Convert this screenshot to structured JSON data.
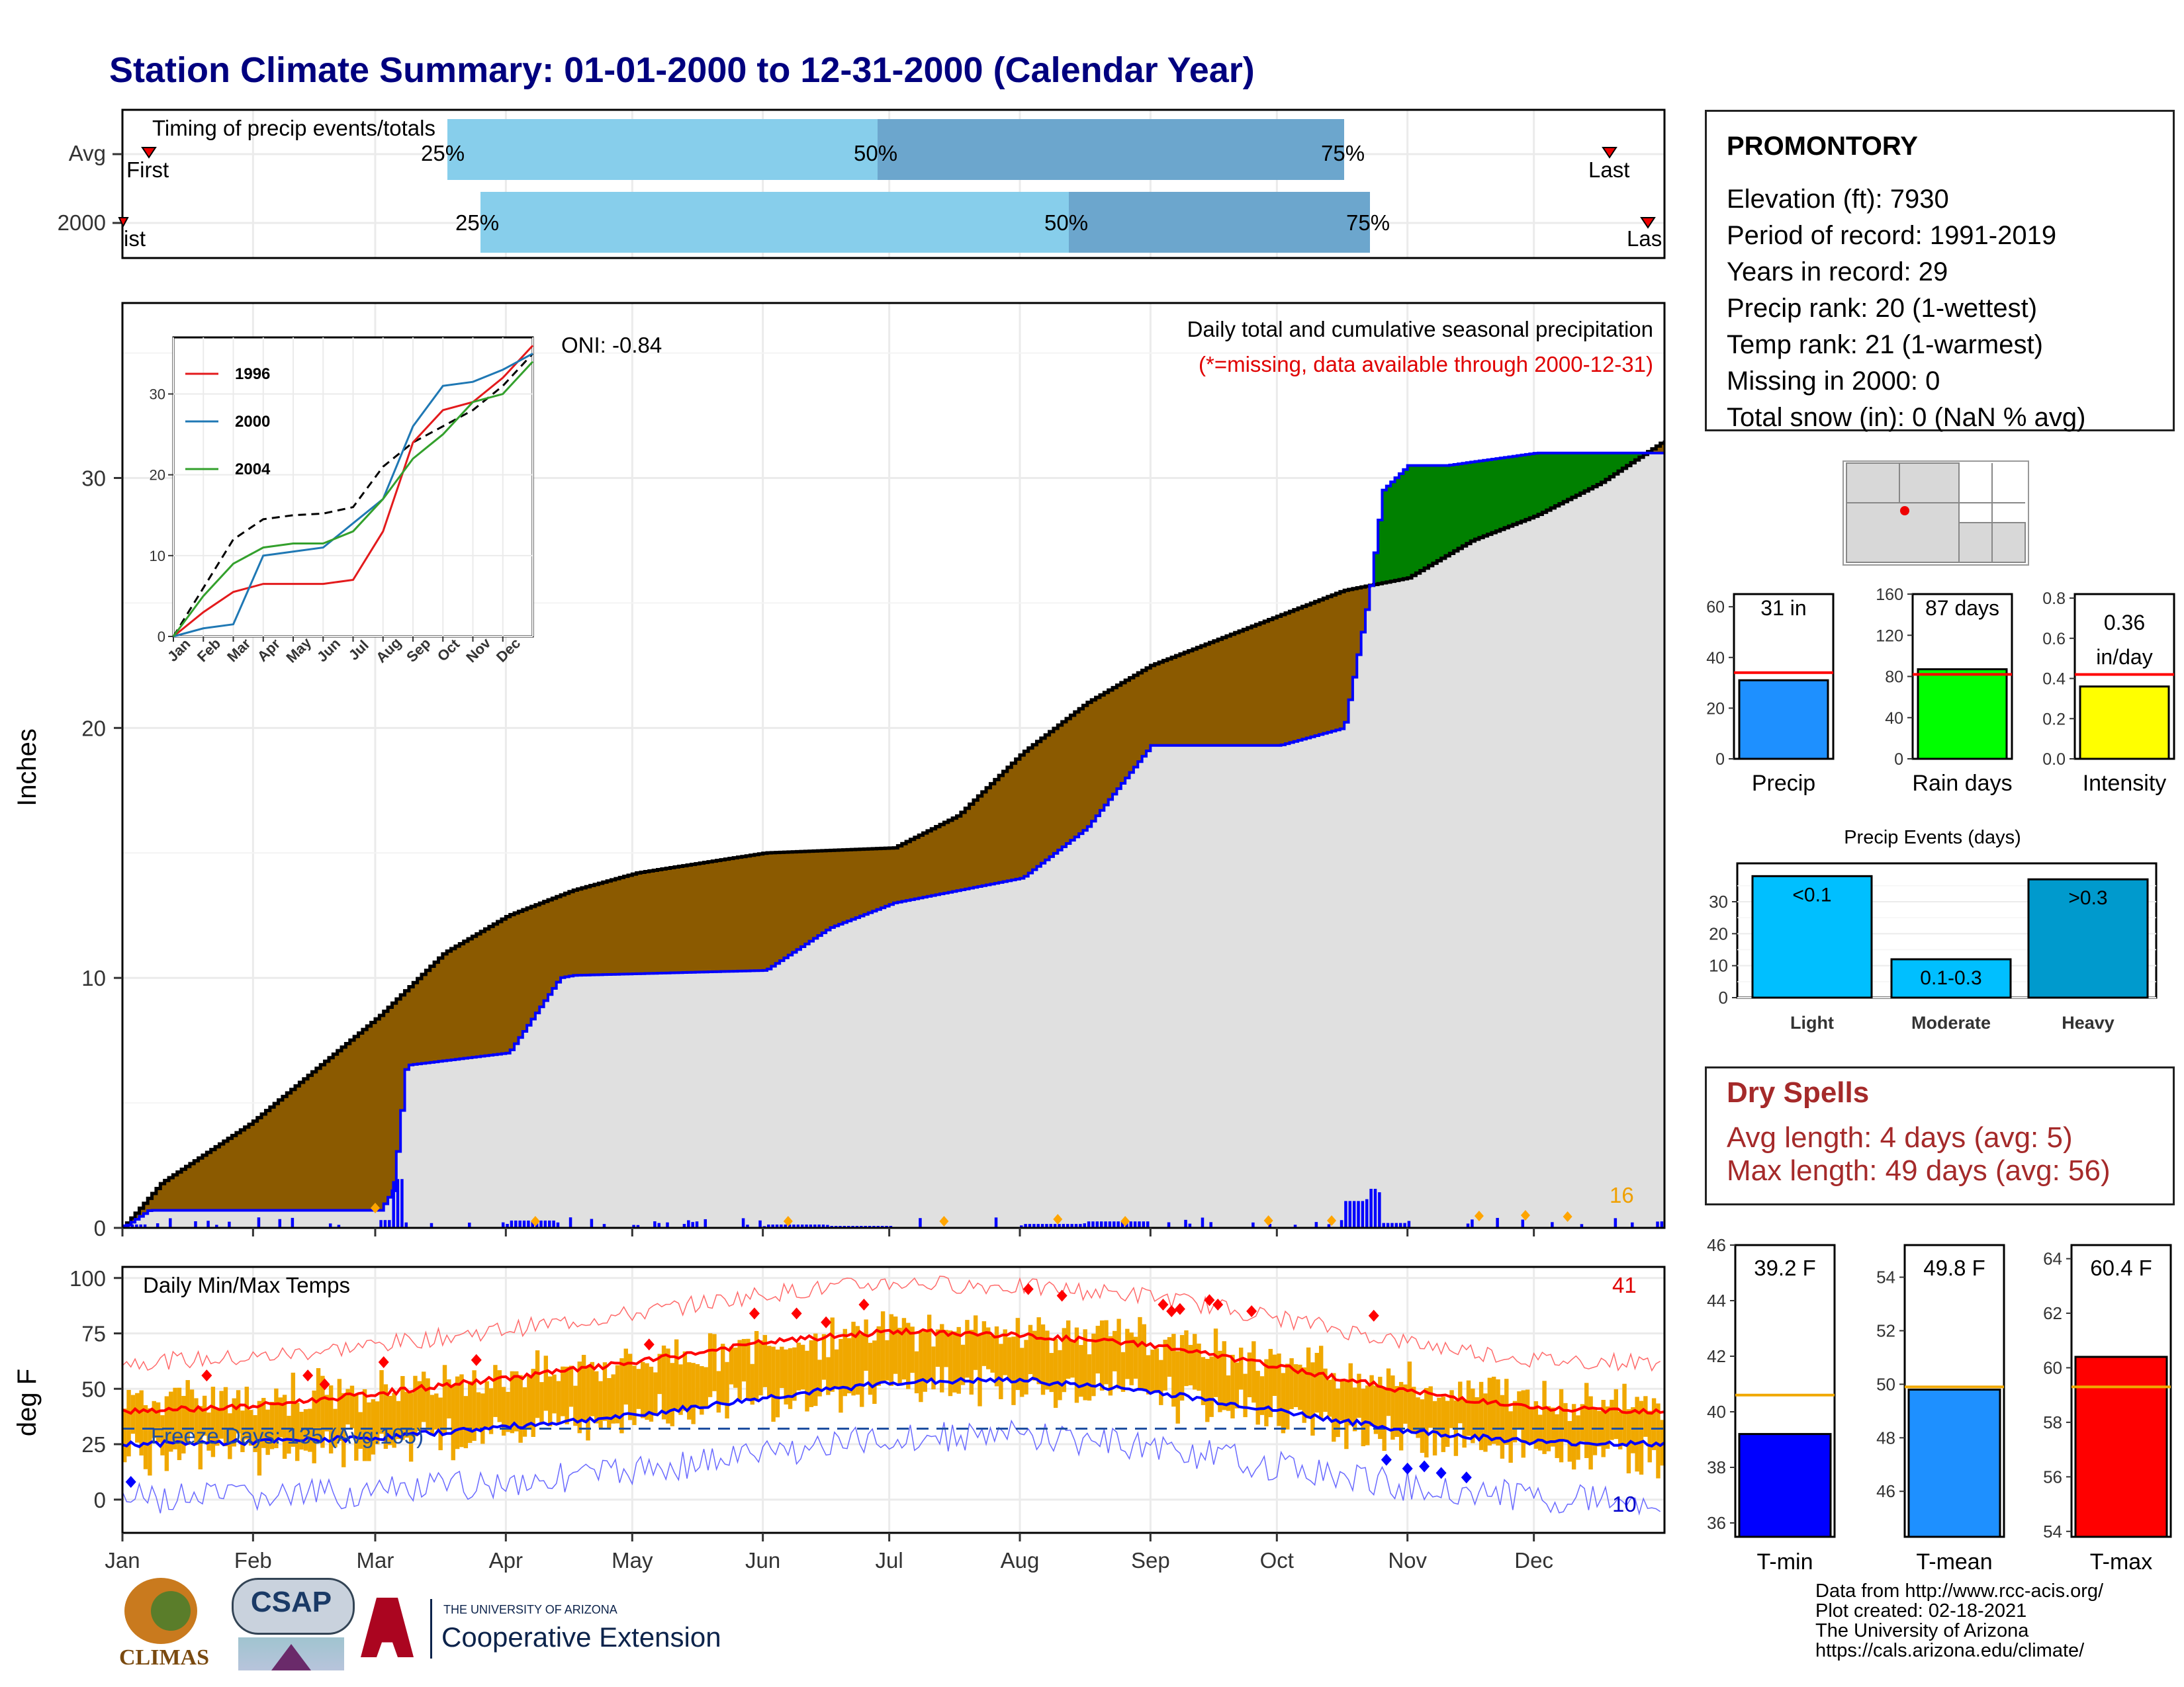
{
  "title": "Station Climate Summary: 01-01-2000 to 12-31-2000 (Calendar Year)",
  "colors": {
    "title": "#00007f",
    "brown_fill": "#8b5a00",
    "green_fill": "#008000",
    "gray_fill": "#e0e0e0",
    "blue_line": "#0000ff",
    "light_bar": "#87ceeb",
    "dark_bar": "#6ca6cd",
    "precip_bar": "#1e90ff",
    "raindays_bar": "#00ff00",
    "intensity_bar": "#ffff00",
    "tmin_bar": "#0000ff",
    "tmean_bar": "#1e90ff",
    "tmax_bar": "#ff0000",
    "temp_range": "#f0a800",
    "dry_text": "#a52a2a"
  },
  "months": [
    "Jan",
    "Feb",
    "Mar",
    "Apr",
    "May",
    "Jun",
    "Jul",
    "Aug",
    "Sep",
    "Oct",
    "Nov",
    "Dec"
  ],
  "timing": {
    "label": "Timing of precip events/totals",
    "rows": [
      {
        "name": "Avg",
        "first_label": "First",
        "last_label": "Last",
        "p25": "25%",
        "p50": "50%",
        "p75": "75%"
      },
      {
        "name": "2000",
        "first_label": "ist",
        "last_label": "Las",
        "p25": "25%",
        "p50": "50%",
        "p75": "75%"
      }
    ]
  },
  "precip_panel": {
    "y_label": "Inches",
    "annotation": "Daily total and cumulative seasonal precipitation",
    "missing_note": "(*=missing, data available through 2000-12-31)",
    "oni": "ONI: -0.84",
    "count_label": "16",
    "y_ticks": [
      "0",
      "10",
      "20",
      "30"
    ]
  },
  "inset": {
    "y_ticks": [
      "0",
      "10",
      "20",
      "30"
    ],
    "x_ticks": [
      "Jan",
      "Feb",
      "Mar",
      "Apr",
      "May",
      "Jun",
      "Jul",
      "Aug",
      "Sep",
      "Oct",
      "Nov",
      "Dec"
    ],
    "legend": [
      {
        "name": "1996",
        "color": "#e31a1c"
      },
      {
        "name": "2000",
        "color": "#1f78b4"
      },
      {
        "name": "2004",
        "color": "#33a02c"
      }
    ]
  },
  "temp_panel": {
    "y_label": "deg F",
    "label": "Daily Min/Max Temps",
    "freeze": "Freeze Days: 135 (Avg:105)",
    "hot_count": "41",
    "cold_count": "10",
    "y_ticks": [
      "0",
      "25",
      "50",
      "75",
      "100"
    ]
  },
  "station": {
    "name": "PROMONTORY",
    "lines": [
      "Elevation (ft): 7930",
      "Period of record: 1991-2019",
      "Years in record: 29",
      "Precip rank: 20 (1-wettest)",
      "Temp rank: 21 (1-warmest)",
      "Missing in 2000: 0",
      "Total snow (in): 0 (NaN % avg)"
    ]
  },
  "mini_bars": [
    {
      "label": "Precip",
      "value_text": "31 in",
      "value": 31,
      "avg": 34,
      "ymax": 65,
      "ticks": [
        "0",
        "20",
        "40",
        "60"
      ],
      "tick_vals": [
        0,
        20,
        40,
        60
      ]
    },
    {
      "label": "Rain days",
      "value_text": "87 days",
      "value": 87,
      "avg": 82,
      "ymax": 160,
      "ticks": [
        "0",
        "40",
        "80",
        "120",
        "160"
      ],
      "tick_vals": [
        0,
        40,
        80,
        120,
        160
      ]
    },
    {
      "label": "Intensity",
      "value_text": "0.36 in/day",
      "value_line1": "0.36",
      "value_line2": "in/day",
      "value": 0.36,
      "avg": 0.42,
      "ymax": 0.82,
      "ticks": [
        "0.0",
        "0.2",
        "0.4",
        "0.6",
        "0.8"
      ],
      "tick_vals": [
        0,
        0.2,
        0.4,
        0.6,
        0.8
      ]
    }
  ],
  "events": {
    "title": "Precip Events (days)",
    "categories": [
      "Light",
      "Moderate",
      "Heavy"
    ],
    "bar_labels": [
      "<0.1",
      "0.1-0.3",
      ">0.3"
    ],
    "values": [
      38,
      12,
      37
    ],
    "ticks": [
      "0",
      "10",
      "20",
      "30"
    ]
  },
  "dry_spells": {
    "title": "Dry Spells",
    "avg_line": "Avg length: 4 days (avg: 5)",
    "max_line": "Max length: 49 days (avg: 56)"
  },
  "temp_bars": [
    {
      "label": "T-min",
      "value_text": "39.2 F",
      "value": 39.2,
      "avg": 40.6,
      "ymin": 35.5,
      "ymax": 46.0,
      "ticks": [
        "36",
        "38",
        "40",
        "42",
        "44",
        "46"
      ],
      "tick_vals": [
        36,
        38,
        40,
        42,
        44,
        46
      ]
    },
    {
      "label": "T-mean",
      "value_text": "49.8 F",
      "value": 49.8,
      "avg": 49.9,
      "ymin": 44.3,
      "ymax": 55.2,
      "ticks": [
        "46",
        "48",
        "50",
        "52",
        "54"
      ],
      "tick_vals": [
        46,
        48,
        50,
        52,
        54
      ]
    },
    {
      "label": "T-max",
      "value_text": "60.4 F",
      "value": 60.4,
      "avg": 59.3,
      "ymin": 53.8,
      "ymax": 64.5,
      "ticks": [
        "54",
        "56",
        "58",
        "60",
        "62",
        "64"
      ],
      "tick_vals": [
        54,
        56,
        58,
        60,
        62,
        64
      ]
    }
  ],
  "footer": [
    "Data from http://www.rcc-acis.org/",
    "Plot created: 02-18-2021",
    "The University of Arizona",
    "https://cals.arizona.edu/climate/"
  ],
  "logos": {
    "climas": "CLIMAS",
    "csap": "CSAP",
    "ua_small": "THE UNIVERSITY OF ARIZONA",
    "ua_big": "Cooperative Extension"
  },
  "chart_data": {
    "type": "area",
    "title": "Station Climate Summary: 01-01-2000 to 12-31-2000 (Calendar Year)",
    "ylabel": "Inches",
    "ylim": [
      0,
      37
    ],
    "x_unit": "month",
    "series": [
      {
        "name": "",
        "x": [
          0,
          0.3,
          1.0,
          2.0,
          2.5,
          3.0,
          3.5,
          4.0,
          5.0,
          6.0,
          6.5,
          7.0,
          7.5,
          8.0,
          8.5,
          9.0,
          9.5,
          10.0,
          10.5,
          11.0,
          11.5,
          12.0
        ],
        "values": [
          0,
          1.8,
          4.2,
          8.5,
          11.0,
          12.5,
          13.5,
          14.2,
          15.0,
          15.2,
          16.5,
          19.0,
          21.0,
          22.5,
          23.5,
          24.5,
          25.5,
          26.0,
          27.5,
          28.5,
          29.8,
          31.5
        ]
      },
      {
        "name": "2000",
        "x": [
          0,
          0.2,
          2.0,
          2.1,
          2.2,
          3.0,
          3.4,
          3.5,
          5.0,
          5.5,
          6.0,
          7.0,
          7.5,
          8.0,
          9.0,
          9.5,
          9.7,
          9.8,
          10.0,
          10.3,
          11.0,
          12.0
        ],
        "values": [
          0,
          0.7,
          0.7,
          1.5,
          6.5,
          7.0,
          10.0,
          10.1,
          10.3,
          12.0,
          13.0,
          14.0,
          16.0,
          19.3,
          19.3,
          20.0,
          25.5,
          29.5,
          30.5,
          30.5,
          31.0,
          31.0
        ]
      }
    ],
    "temperature": {
      "ylabel": "deg F",
      "ylim": [
        -15,
        105
      ],
      "avg_max_x": [
        0,
        1,
        2,
        3,
        4,
        5,
        6,
        7,
        8,
        9,
        10,
        11,
        12
      ],
      "avg_max": [
        40,
        42,
        48,
        55,
        62,
        71,
        76,
        74,
        70,
        60,
        49,
        41,
        40
      ],
      "avg_min": [
        25,
        26,
        28,
        33,
        38,
        46,
        53,
        54,
        49,
        40,
        31,
        26,
        25
      ],
      "freeze_line": 32
    }
  }
}
